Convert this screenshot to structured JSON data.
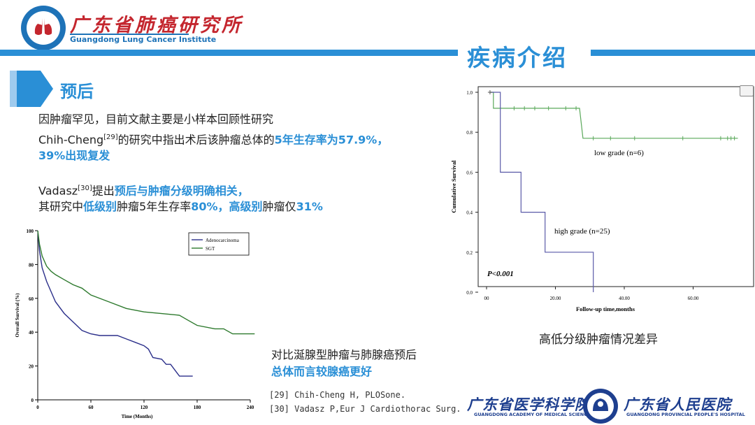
{
  "header": {
    "institute_cn": "广东省肺癌研究所",
    "institute_en": "Guangdong Lung Cancer Institute",
    "section_title": "疾病介绍"
  },
  "subsection": {
    "title": "预后"
  },
  "paragraph1": {
    "line1": "因肿瘤罕见，目前文献主要是小样本回顾性研究",
    "line2_prefix": "Chih-Cheng",
    "line2_ref": "[29]",
    "line2_mid": "的研究中指出术后该肿瘤总体的",
    "line2_highlight": "5年生存率为57.9%，",
    "line3_highlight": "39%出现复发"
  },
  "paragraph2": {
    "line1_prefix": "Vadasz",
    "line1_ref": "[30]",
    "line1_mid": "提出",
    "line1_highlight": "预后与肿瘤分级明确相关，",
    "line2_a": "其研究中",
    "line2_b": "低级别",
    "line2_c": "肿瘤5年生存率",
    "line2_d": "80%，",
    "line2_e": "高级别",
    "line2_f": "肿瘤仅",
    "line2_g": "31%"
  },
  "comparison": {
    "line1": "对比涎腺型肿瘤与肺腺癌预后",
    "line2": "总体而言较腺癌更好"
  },
  "references": [
    "[29] Chih-Cheng H, PLOSone.",
    "[30] Vadasz P,Eur J Cardiothorac Surg."
  ],
  "right_caption": "高低分级肿瘤情况差异",
  "bottom": {
    "academy_cn": "广东省医学科学院",
    "academy_en": "GUANGDONG ACADEMY OF MEDICAL SCIENCES",
    "hospital_cn": "广东省人民医院",
    "hospital_en": "GUANGDONG PROVINCIAL PEOPLE'S HOSPITAL"
  },
  "colors": {
    "accent": "#2a8fd6",
    "brand_red": "#c4262e",
    "navy": "#1e3f8f"
  },
  "icons": [
    "lung-institute-logo",
    "hospital-logo",
    "arrow-pointer-icon",
    "image-corner-icon"
  ],
  "chart_data": [
    {
      "type": "line",
      "title": "",
      "xlabel": "Time (Months)",
      "ylabel": "Overall Survival (%)",
      "xlim": [
        0,
        240
      ],
      "ylim": [
        0,
        100
      ],
      "x_ticks": [
        0,
        60,
        120,
        180,
        240
      ],
      "y_ticks": [
        0,
        20,
        40,
        60,
        80,
        100
      ],
      "legend_position": "top-right",
      "series": [
        {
          "name": "Adenocarcinoma",
          "color": "#2b2f8a",
          "x": [
            0,
            2,
            5,
            10,
            15,
            20,
            30,
            40,
            50,
            60,
            70,
            80,
            90,
            100,
            110,
            120,
            125,
            130,
            140,
            145,
            150,
            160,
            175
          ],
          "y": [
            100,
            88,
            78,
            70,
            64,
            58,
            51,
            46,
            41,
            39,
            38,
            38,
            38,
            36,
            34,
            32,
            30,
            25,
            24,
            21,
            21,
            14,
            14
          ]
        },
        {
          "name": "SGT",
          "color": "#2e7a2e",
          "x": [
            0,
            2,
            5,
            10,
            15,
            20,
            30,
            40,
            50,
            60,
            80,
            100,
            120,
            140,
            160,
            170,
            180,
            200,
            210,
            220,
            230,
            245
          ],
          "y": [
            100,
            92,
            85,
            79,
            76,
            74,
            71,
            68,
            66,
            62,
            58,
            54,
            52,
            51,
            50,
            47,
            44,
            42,
            42,
            39,
            39,
            39
          ]
        }
      ]
    },
    {
      "type": "line",
      "title": "",
      "xlabel": "Follow-up time,months",
      "ylabel": "Cumulative Survival",
      "xlim": [
        0,
        80
      ],
      "ylim": [
        0,
        1
      ],
      "x_ticks": [
        "00",
        "20.00",
        "40.00",
        "60.00",
        "80.00"
      ],
      "y_ticks": [
        "0.0",
        "0.2",
        "0.4",
        "0.6",
        "0.8",
        "1.0"
      ],
      "annotation": "P<0.001",
      "series": [
        {
          "name": "low grade (n=6)",
          "color": "#5aa85a",
          "x": [
            1,
            2,
            2,
            4,
            27,
            28,
            73
          ],
          "y": [
            1.0,
            1.0,
            0.92,
            0.92,
            0.92,
            0.77,
            0.77
          ]
        },
        {
          "name": "high grade (n=25)",
          "color": "#5a5aa8",
          "x": [
            1,
            4,
            4,
            10,
            10,
            17,
            17,
            31,
            31
          ],
          "y": [
            1.0,
            1.0,
            0.6,
            0.6,
            0.4,
            0.4,
            0.2,
            0.2,
            0.0
          ]
        }
      ]
    }
  ]
}
